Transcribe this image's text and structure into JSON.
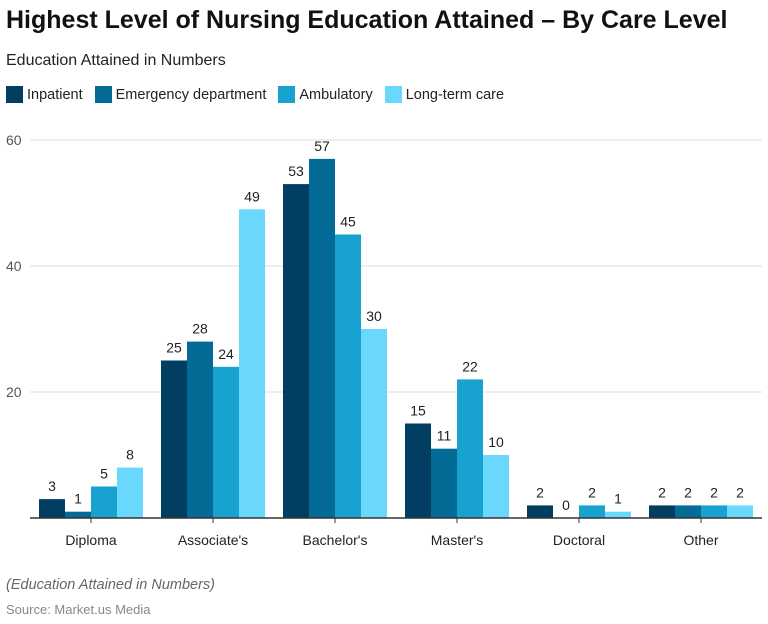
{
  "chart_data": {
    "type": "bar",
    "title": "Highest Level of Nursing Education Attained – By Care Level",
    "subtitle": "Education Attained in Numbers",
    "categories": [
      "Diploma",
      "Associate's",
      "Bachelor's",
      "Master's",
      "Doctoral",
      "Other"
    ],
    "series": [
      {
        "name": "Inpatient",
        "color": "#023e62",
        "values": [
          3,
          25,
          53,
          15,
          2,
          2
        ]
      },
      {
        "name": "Emergency department",
        "color": "#046b96",
        "values": [
          1,
          28,
          57,
          11,
          0,
          2
        ]
      },
      {
        "name": "Ambulatory",
        "color": "#17a2d0",
        "values": [
          5,
          24,
          45,
          22,
          2,
          2
        ]
      },
      {
        "name": "Long-term care",
        "color": "#6ad8fd",
        "values": [
          8,
          49,
          30,
          10,
          1,
          2
        ]
      }
    ],
    "ylim": [
      0,
      60
    ],
    "yticks": [
      20,
      40,
      60
    ],
    "grid": true,
    "legend": "top-left",
    "caption": "(Education Attained in Numbers)",
    "source": "Source: Market.us Media"
  }
}
